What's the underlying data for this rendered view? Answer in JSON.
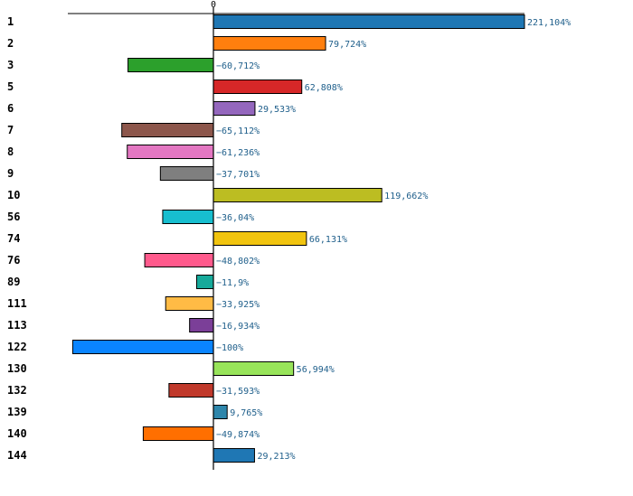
{
  "chart_data": {
    "type": "bar",
    "orientation": "horizontal",
    "title": "",
    "xlabel": "",
    "ylabel": "",
    "zero_tick": "0",
    "xlim": [
      -100,
      221.104
    ],
    "categories": [
      "1",
      "2",
      "3",
      "5",
      "6",
      "7",
      "8",
      "9",
      "10",
      "56",
      "74",
      "76",
      "89",
      "111",
      "113",
      "122",
      "130",
      "132",
      "139",
      "140",
      "144"
    ],
    "values": [
      221.104,
      79.724,
      -60.712,
      62.808,
      29.533,
      -65.112,
      -61.236,
      -37.701,
      119.662,
      -36.04,
      66.131,
      -48.802,
      -11.9,
      -33.925,
      -16.934,
      -100,
      56.994,
      -31.593,
      9.765,
      -49.874,
      29.213
    ],
    "value_labels": [
      "221,104%",
      "79,724%",
      "−60,712%",
      "62,808%",
      "29,533%",
      "−65,112%",
      "−61,236%",
      "−37,701%",
      "119,662%",
      "−36,04%",
      "66,131%",
      "−48,802%",
      "−11,9%",
      "−33,925%",
      "−16,934%",
      "−100%",
      "56,994%",
      "−31,593%",
      "9,765%",
      "−49,874%",
      "29,213%"
    ],
    "colors": [
      "#1f77b4",
      "#ff7f0e",
      "#2ca02c",
      "#d62728",
      "#9467bd",
      "#8c564b",
      "#e377c2",
      "#7f7f7f",
      "#bcbd22",
      "#17becf",
      "#f1c40f",
      "#ff5a8c",
      "#16a99a",
      "#ffbb45",
      "#7b3f98",
      "#0a84ff",
      "#98e45a",
      "#c0392b",
      "#2e86ab",
      "#ff6f00",
      "#1f77b4"
    ]
  }
}
